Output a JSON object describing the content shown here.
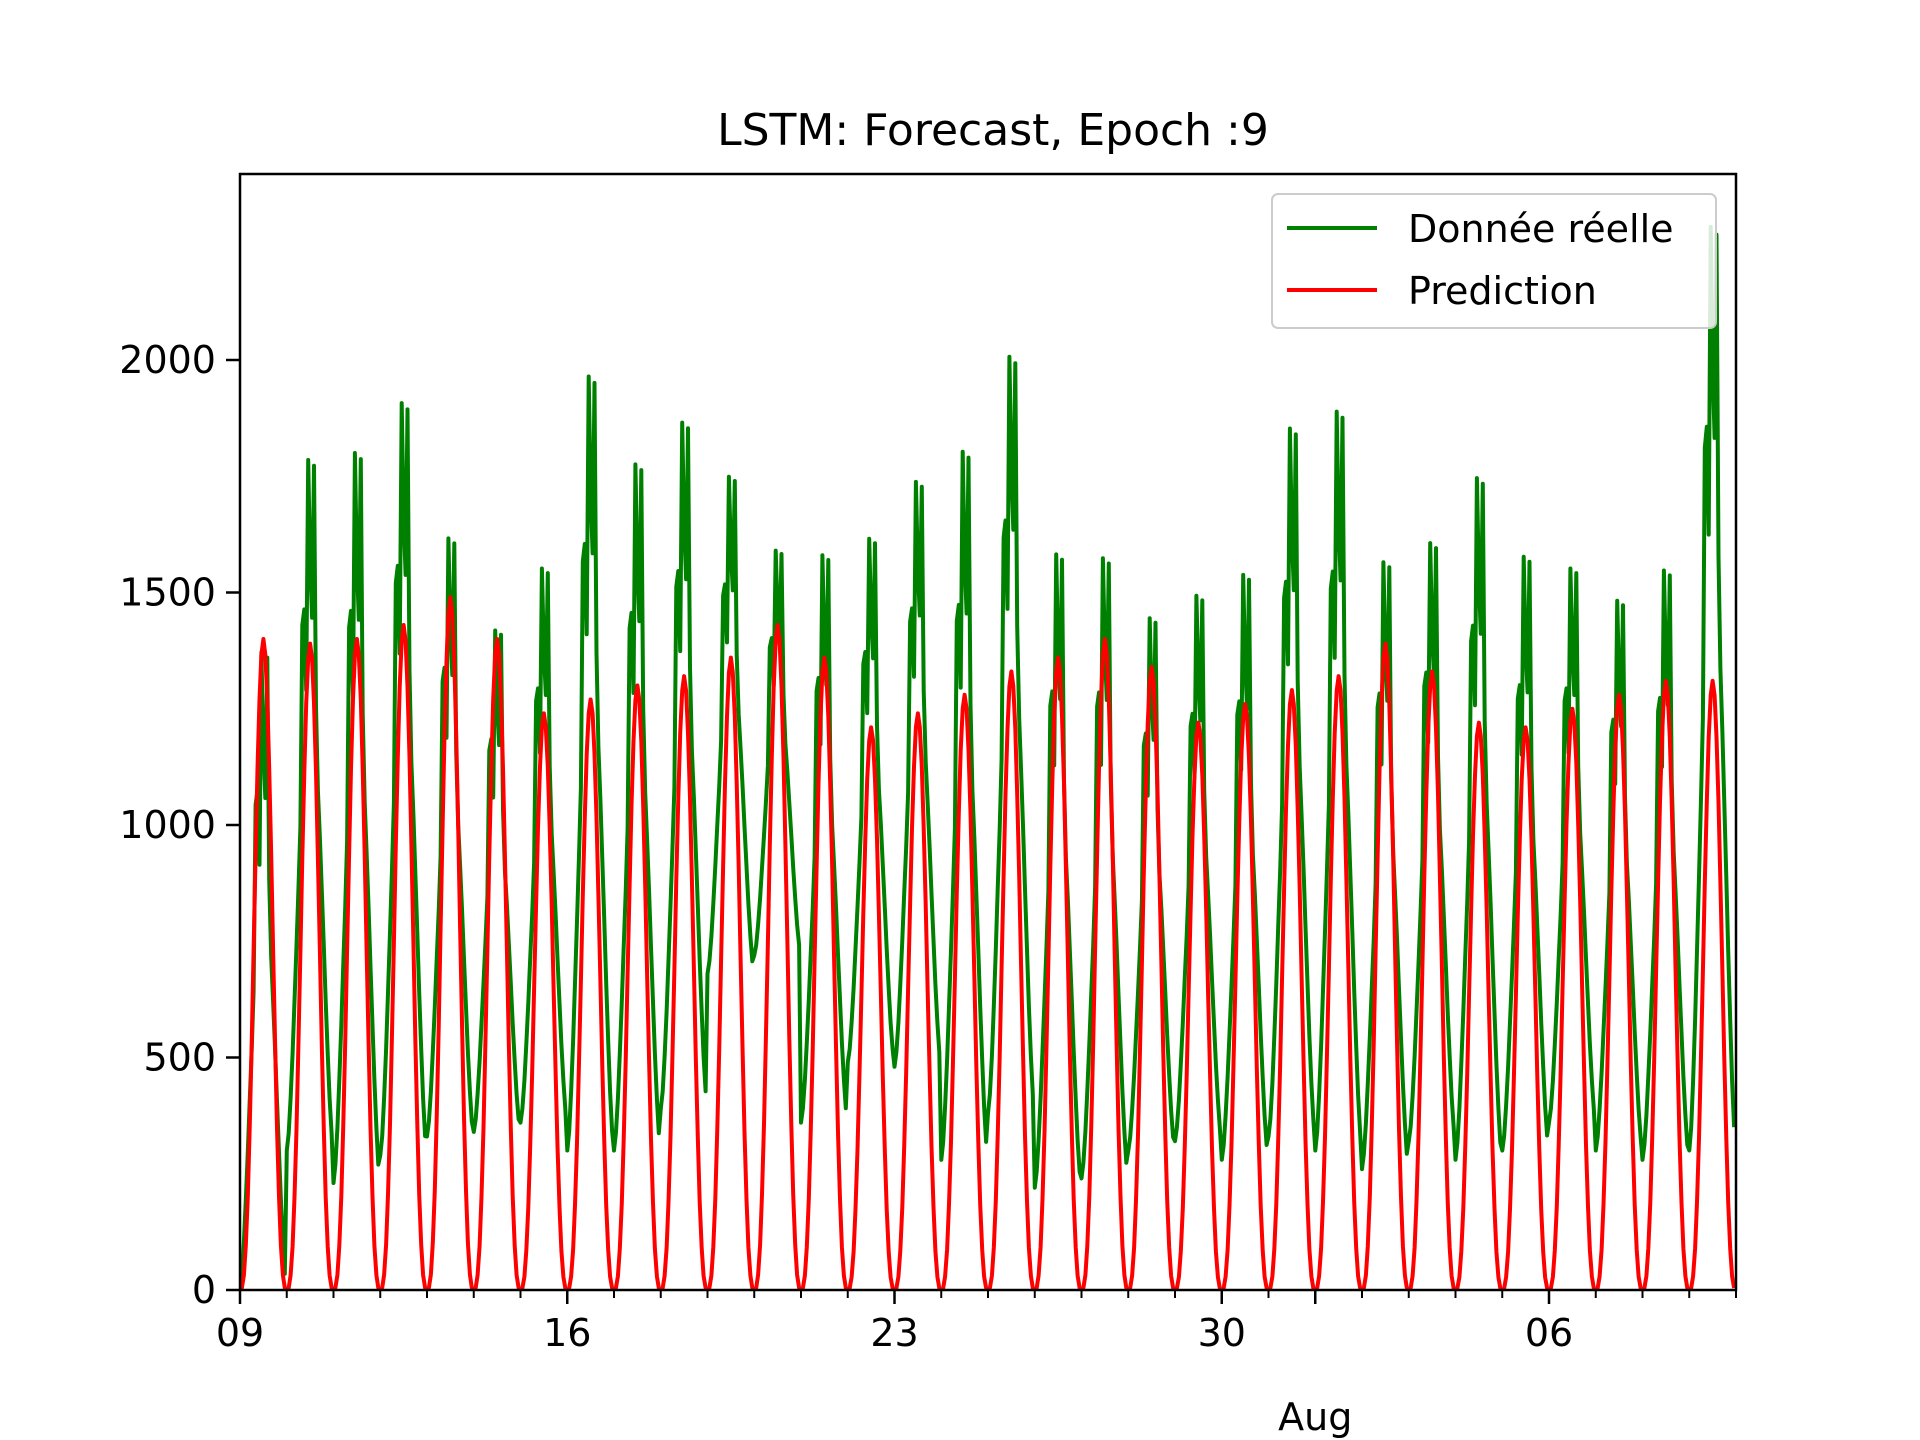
{
  "chart_data": {
    "type": "line",
    "title": "LSTM: Forecast, Epoch :9",
    "xlabel": "",
    "ylabel": "",
    "x_axis": {
      "start_day": 9,
      "end_day": 41,
      "ticks": [
        {
          "day": 9,
          "label": "09"
        },
        {
          "day": 16,
          "label": "16"
        },
        {
          "day": 23,
          "label": "23"
        },
        {
          "day": 30,
          "label": "30"
        },
        {
          "day": 37,
          "label": "06"
        }
      ],
      "minor_ticks_per_day": true,
      "secondary_label": {
        "text": "Aug",
        "day": 32
      }
    },
    "ylim": [
      0,
      2400
    ],
    "y_ticks": [
      0,
      500,
      1000,
      1500,
      2000
    ],
    "grid": false,
    "legend": {
      "position": "upper right",
      "entries": [
        {
          "label": "Donnée réelle",
          "series": 0
        },
        {
          "label": "Prediction",
          "series": 1
        }
      ]
    },
    "series": [
      {
        "name": "Donnée réelle",
        "color": "#008000",
        "daily_peaks": [
          1450,
          1870,
          1890,
          2000,
          1690,
          1480,
          1620,
          2060,
          1860,
          1950,
          1810,
          1640,
          1650,
          1680,
          1810,
          1890,
          2100,
          1660,
          1650,
          1510,
          1560,
          1610,
          1940,
          1980,
          1640,
          1680,
          1830,
          1650,
          1620,
          1550,
          1620,
          2400
        ],
        "daily_troughs": [
          0,
          300,
          230,
          290,
          330,
          340,
          360,
          300,
          300,
          390,
          680,
          720,
          360,
          490,
          480,
          280,
          380,
          220,
          240,
          300,
          320,
          280,
          330,
          300,
          260,
          320,
          280,
          300,
          360,
          300,
          280,
          300
        ]
      },
      {
        "name": "Prediction",
        "color": "#ff0000",
        "daily_peaks": [
          1400,
          1390,
          1400,
          1430,
          1490,
          1400,
          1240,
          1270,
          1300,
          1320,
          1360,
          1430,
          1360,
          1210,
          1240,
          1280,
          1330,
          1360,
          1400,
          1340,
          1220,
          1260,
          1290,
          1320,
          1390,
          1330,
          1220,
          1210,
          1250,
          1280,
          1310,
          1310
        ],
        "daily_troughs": [
          0,
          0,
          0,
          0,
          0,
          0,
          0,
          0,
          0,
          0,
          0,
          0,
          0,
          0,
          0,
          0,
          0,
          0,
          0,
          0,
          0,
          0,
          0,
          0,
          0,
          0,
          0,
          0,
          0,
          0,
          0,
          0
        ]
      }
    ]
  }
}
